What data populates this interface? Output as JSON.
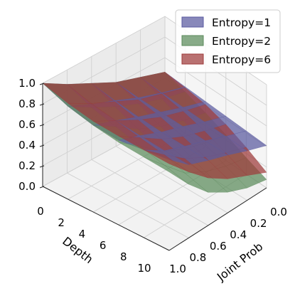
{
  "chart_data": {
    "type": "surface3d",
    "xlabel": "Joint Prob",
    "ylabel": "Depth",
    "zlabel": "",
    "xlim": [
      0,
      1
    ],
    "ylim": [
      0,
      10
    ],
    "zlim": [
      0,
      1
    ],
    "x_ticks": [
      "0.0",
      "0.2",
      "0.4",
      "0.6",
      "0.8",
      "1.0"
    ],
    "y_ticks": [
      "0",
      "2",
      "4",
      "6",
      "8",
      "10"
    ],
    "z_ticks": [
      "0.0",
      "0.2",
      "0.4",
      "0.6",
      "0.8",
      "1.0"
    ],
    "grid": true,
    "legend_position": "top-right",
    "x": [
      0.0,
      0.2,
      0.4,
      0.6,
      0.8,
      1.0
    ],
    "y": [
      0,
      2,
      4,
      6,
      8,
      10
    ],
    "series": [
      {
        "name": "Entropy=1",
        "color": "#5a5aa0",
        "z": [
          [
            1.0,
            0.9,
            0.84,
            0.82,
            0.85,
            0.88
          ],
          [
            0.86,
            0.79,
            0.76,
            0.74,
            0.72,
            0.71
          ],
          [
            0.74,
            0.7,
            0.67,
            0.65,
            0.64,
            0.63
          ],
          [
            0.62,
            0.6,
            0.59,
            0.58,
            0.57,
            0.56
          ],
          [
            0.54,
            0.52,
            0.51,
            0.5,
            0.49,
            0.48
          ],
          [
            0.46,
            0.45,
            0.44,
            0.43,
            0.42,
            0.41
          ]
        ]
      },
      {
        "name": "Entropy=2",
        "color": "#5a8a5a",
        "z": [
          [
            1.0,
            0.9,
            0.84,
            0.8,
            0.78,
            0.76
          ],
          [
            0.86,
            0.76,
            0.7,
            0.64,
            0.58,
            0.52
          ],
          [
            0.74,
            0.64,
            0.55,
            0.46,
            0.38,
            0.32
          ],
          [
            0.62,
            0.54,
            0.45,
            0.36,
            0.27,
            0.2
          ],
          [
            0.54,
            0.46,
            0.38,
            0.29,
            0.2,
            0.12
          ],
          [
            0.46,
            0.4,
            0.33,
            0.25,
            0.16,
            0.08
          ]
        ]
      },
      {
        "name": "Entropy=6",
        "color": "#9e3a3a",
        "z": [
          [
            1.0,
            0.93,
            0.88,
            0.86,
            0.85,
            0.84
          ],
          [
            0.86,
            0.8,
            0.76,
            0.72,
            0.68,
            0.64
          ],
          [
            0.74,
            0.69,
            0.64,
            0.58,
            0.52,
            0.46
          ],
          [
            0.62,
            0.58,
            0.54,
            0.48,
            0.41,
            0.33
          ],
          [
            0.54,
            0.51,
            0.47,
            0.41,
            0.33,
            0.24
          ],
          [
            0.46,
            0.44,
            0.41,
            0.35,
            0.26,
            0.15
          ]
        ]
      }
    ]
  }
}
